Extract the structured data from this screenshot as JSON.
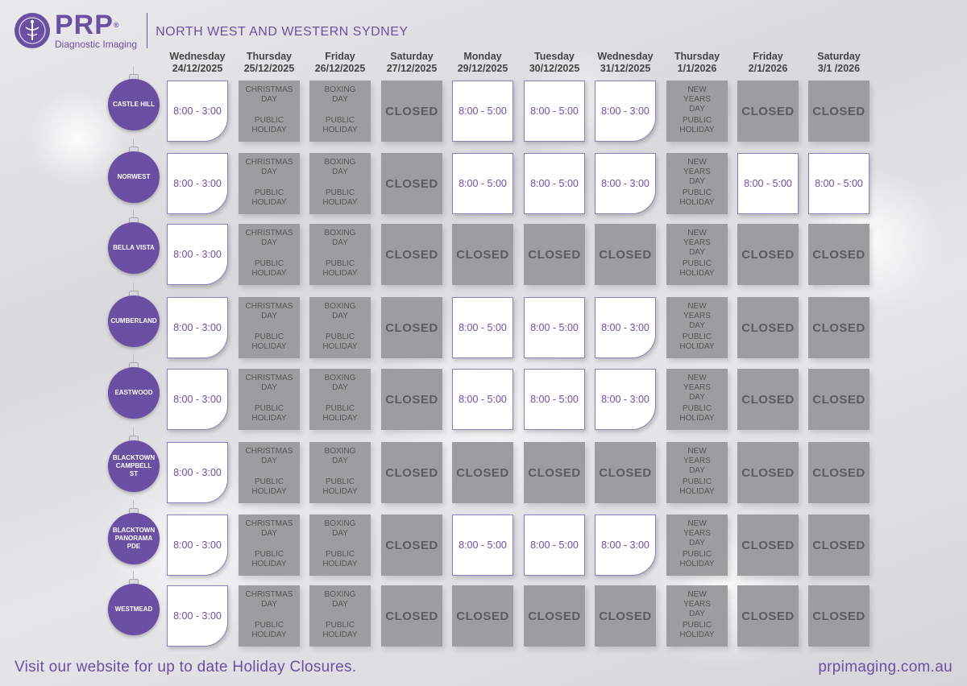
{
  "brand": {
    "logo_text": "PRP",
    "registered_mark": "®",
    "subtitle": "Diagnostic Imaging",
    "region": "NORTH WEST AND WESTERN SYDNEY",
    "accent_color": "#6b4fa3"
  },
  "days": [
    {
      "day": "Wednesday",
      "date": "24/12/2025"
    },
    {
      "day": "Thursday",
      "date": "25/12/2025"
    },
    {
      "day": "Friday",
      "date": "26/12/2025"
    },
    {
      "day": "Saturday",
      "date": "27/12/2025"
    },
    {
      "day": "Monday",
      "date": "29/12/2025"
    },
    {
      "day": "Tuesday",
      "date": "30/12/2025"
    },
    {
      "day": "Wednesday",
      "date": "31/12/2025"
    },
    {
      "day": "Thursday",
      "date": "1/1/2026"
    },
    {
      "day": "Friday",
      "date": "2/1/2026"
    },
    {
      "day": "Saturday",
      "date": "3/1 /2026"
    }
  ],
  "holidays": {
    "christmas": {
      "name": "CHRISTMAS DAY",
      "type": "PUBLIC HOLIDAY"
    },
    "boxing": {
      "name": "BOXING DAY",
      "type": "PUBLIC HOLIDAY"
    },
    "newyear": {
      "name": "NEW YEARS DAY",
      "type": "PUBLIC HOLIDAY"
    }
  },
  "locations": [
    {
      "name": "CASTLE HILL",
      "cells": [
        "8:00 - 3:00",
        "H:christmas",
        "H:boxing",
        "CLOSED",
        "8:00 - 5:00",
        "8:00 - 5:00",
        "8:00 - 3:00",
        "H:newyear",
        "CLOSED",
        "CLOSED"
      ]
    },
    {
      "name": "NORWEST",
      "cells": [
        "8:00 - 3:00",
        "H:christmas",
        "H:boxing",
        "CLOSED",
        "8:00 - 5:00",
        "8:00 - 5:00",
        "8:00 - 3:00",
        "H:newyear",
        "8:00 - 5:00",
        "8:00 - 5:00"
      ]
    },
    {
      "name": "BELLA VISTA",
      "cells": [
        "8:00 - 3:00",
        "H:christmas",
        "H:boxing",
        "CLOSED",
        "CLOSED",
        "CLOSED",
        "CLOSED",
        "H:newyear",
        "CLOSED",
        "CLOSED"
      ]
    },
    {
      "name": "CUMBERLAND",
      "cells": [
        "8:00 - 3:00",
        "H:christmas",
        "H:boxing",
        "CLOSED",
        "8:00 - 5:00",
        "8:00 - 5:00",
        "8:00 - 3:00",
        "H:newyear",
        "CLOSED",
        "CLOSED"
      ]
    },
    {
      "name": "EASTWOOD",
      "cells": [
        "8:00 - 3:00",
        "H:christmas",
        "H:boxing",
        "CLOSED",
        "8:00 - 5:00",
        "8:00 - 5:00",
        "8:00 - 3:00",
        "H:newyear",
        "CLOSED",
        "CLOSED"
      ]
    },
    {
      "name": "BLACKTOWN CAMPBELL ST",
      "cells": [
        "8:00 - 3:00",
        "H:christmas",
        "H:boxing",
        "CLOSED",
        "CLOSED",
        "CLOSED",
        "CLOSED",
        "H:newyear",
        "CLOSED",
        "CLOSED"
      ]
    },
    {
      "name": "BLACKTOWN PANORAMA PDE",
      "cells": [
        "8:00 - 3:00",
        "H:christmas",
        "H:boxing",
        "CLOSED",
        "8:00 - 5:00",
        "8:00 - 5:00",
        "8:00 - 3:00",
        "H:newyear",
        "CLOSED",
        "CLOSED"
      ]
    },
    {
      "name": "WESTMEAD",
      "cells": [
        "8:00 - 3:00",
        "H:christmas",
        "H:boxing",
        "CLOSED",
        "CLOSED",
        "CLOSED",
        "CLOSED",
        "H:newyear",
        "CLOSED",
        "CLOSED"
      ]
    }
  ],
  "footer": {
    "note": "Visit our website for up to date Holiday Closures.",
    "website": "prpimaging.com.au"
  }
}
